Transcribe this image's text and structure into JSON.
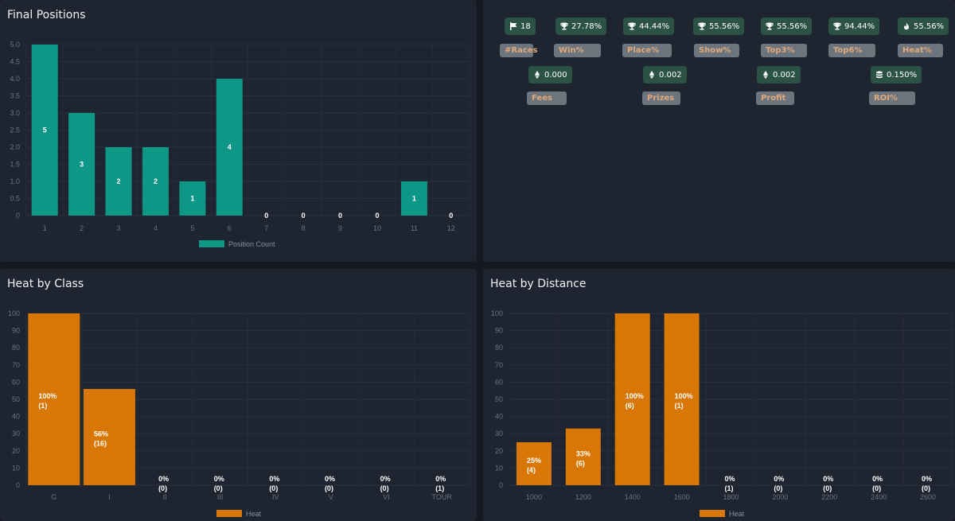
{
  "panels": {
    "final_positions": {
      "title": "Final Positions"
    },
    "heat_by_class": {
      "title": "Heat by Class"
    },
    "heat_by_distance": {
      "title": "Heat by Distance"
    }
  },
  "stats": {
    "row1": [
      {
        "icon": "flag-icon",
        "value": "18",
        "label": "#Races"
      },
      {
        "icon": "trophy-icon",
        "value": "27.78%",
        "label": "Win%"
      },
      {
        "icon": "trophy-icon",
        "value": "44.44%",
        "label": "Place%"
      },
      {
        "icon": "trophy-icon",
        "value": "55.56%",
        "label": "Show%"
      },
      {
        "icon": "trophy-icon",
        "value": "55.56%",
        "label": "Top3%"
      },
      {
        "icon": "trophy-icon",
        "value": "94.44%",
        "label": "Top6%"
      },
      {
        "icon": "flame-icon",
        "value": "55.56%",
        "label": "Heat%"
      }
    ],
    "row2": [
      {
        "icon": "ethereum-icon",
        "value": "0.000",
        "label": "Fees"
      },
      {
        "icon": "ethereum-icon",
        "value": "0.002",
        "label": "Prizes"
      },
      {
        "icon": "ethereum-icon",
        "value": "0.002",
        "label": "Profit"
      },
      {
        "icon": "coins-icon",
        "value": "0.150%",
        "label": "ROI%"
      }
    ]
  },
  "colors": {
    "teal": "#0e9686",
    "orange": "#d97706",
    "panel": "#1f2530",
    "badge": "#2c5246"
  },
  "chart_data": [
    {
      "type": "bar",
      "title": "Final Positions",
      "categories": [
        "1",
        "2",
        "3",
        "4",
        "5",
        "6",
        "7",
        "8",
        "9",
        "10",
        "11",
        "12"
      ],
      "series": [
        {
          "name": "Position Count",
          "values": [
            5,
            3,
            2,
            2,
            1,
            4,
            0,
            0,
            0,
            0,
            1,
            0
          ]
        }
      ],
      "data_labels": [
        "5",
        "3",
        "2",
        "2",
        "1",
        "4",
        "0",
        "0",
        "0",
        "0",
        "1",
        "0"
      ],
      "yticks": [
        "0",
        "0.5",
        "1.0",
        "1.5",
        "2.0",
        "2.5",
        "3.0",
        "3.5",
        "4.0",
        "4.5",
        "5.0"
      ],
      "ylim": [
        0,
        5
      ],
      "legend": "bottom"
    },
    {
      "type": "bar",
      "title": "Heat by Class",
      "categories": [
        "G",
        "I",
        "II",
        "III",
        "IV",
        "V",
        "VI",
        "TOUR"
      ],
      "series": [
        {
          "name": "Heat",
          "values": [
            100,
            56,
            0,
            0,
            0,
            0,
            0,
            0
          ]
        }
      ],
      "data_labels": [
        [
          "100%",
          "(1)"
        ],
        [
          "56%",
          "(16)"
        ],
        [
          "0%",
          "(0)"
        ],
        [
          "0%",
          "(0)"
        ],
        [
          "0%",
          "(0)"
        ],
        [
          "0%",
          "(0)"
        ],
        [
          "0%",
          "(0)"
        ],
        [
          "0%",
          "(1)"
        ]
      ],
      "yticks": [
        "0",
        "10",
        "20",
        "30",
        "40",
        "50",
        "60",
        "70",
        "80",
        "90",
        "100"
      ],
      "ylim": [
        0,
        100
      ],
      "legend": "bottom"
    },
    {
      "type": "bar",
      "title": "Heat by Distance",
      "categories": [
        "1000",
        "1200",
        "1400",
        "1600",
        "1800",
        "2000",
        "2200",
        "2400",
        "2600"
      ],
      "series": [
        {
          "name": "Heat",
          "values": [
            25,
            33,
            100,
            100,
            0,
            0,
            0,
            0,
            0
          ]
        }
      ],
      "data_labels": [
        [
          "25%",
          "(4)"
        ],
        [
          "33%",
          "(6)"
        ],
        [
          "100%",
          "(6)"
        ],
        [
          "100%",
          "(1)"
        ],
        [
          "0%",
          "(1)"
        ],
        [
          "0%",
          "(0)"
        ],
        [
          "0%",
          "(0)"
        ],
        [
          "0%",
          "(0)"
        ],
        [
          "0%",
          "(0)"
        ]
      ],
      "yticks": [
        "0",
        "10",
        "20",
        "30",
        "40",
        "50",
        "60",
        "70",
        "80",
        "90",
        "100"
      ],
      "ylim": [
        0,
        100
      ],
      "legend": "bottom"
    }
  ]
}
